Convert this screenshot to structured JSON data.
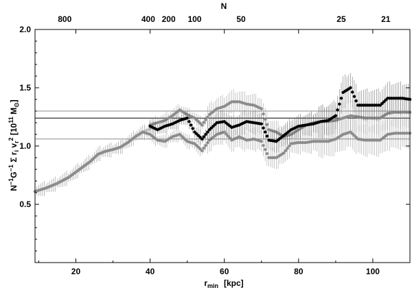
{
  "chart_data": {
    "type": "scatter",
    "x_axis": {
      "label_main": "r",
      "label_sub": "min",
      "label_unit": "[kpc]",
      "range": [
        9,
        110
      ],
      "ticks": [
        20,
        40,
        60,
        80,
        100
      ]
    },
    "y_axis": {
      "label_parts": [
        "N",
        "−1",
        "G",
        "−1",
        " Σ r",
        "i",
        " v",
        "r",
        "2",
        "  [10",
        "11",
        " M",
        "⊙",
        "]"
      ],
      "range": [
        0,
        2.0
      ],
      "ticks": [
        0.5,
        1.0,
        1.5,
        2.0
      ],
      "tick_labels": [
        "0.5",
        "1.0",
        "1.5",
        "2.0"
      ]
    },
    "top_axis": {
      "label": "N",
      "ticks": [
        {
          "r": 17,
          "label": "800"
        },
        {
          "r": 39.5,
          "label": "400"
        },
        {
          "r": 45,
          "label": "200"
        },
        {
          "r": 52,
          "label": "100"
        },
        {
          "r": 64.5,
          "label": "50"
        },
        {
          "r": 91.5,
          "label": "25"
        },
        {
          "r": 103.5,
          "label": "21"
        }
      ]
    },
    "reference_lines": [
      {
        "y": 1.3,
        "color": "#888888"
      },
      {
        "y": 1.24,
        "color": "#000000"
      },
      {
        "y": 1.06,
        "color": "#888888"
      }
    ],
    "series": [
      {
        "color": "#c8c8c8",
        "points": [
          [
            9,
            0.61
          ],
          [
            12,
            0.64
          ],
          [
            15,
            0.68
          ],
          [
            18,
            0.73
          ],
          [
            21,
            0.8
          ],
          [
            24,
            0.87
          ],
          [
            26,
            0.93
          ],
          [
            28,
            0.955
          ],
          [
            30,
            0.97
          ],
          [
            32,
            0.99
          ],
          [
            34,
            1.03
          ],
          [
            36,
            1.08
          ],
          [
            38,
            1.12
          ],
          [
            40,
            1.15
          ]
        ]
      },
      {
        "color": "#8c8c8c",
        "points": [
          [
            9,
            0.61
          ],
          [
            12,
            0.64
          ],
          [
            15,
            0.68
          ],
          [
            18,
            0.73
          ],
          [
            21,
            0.8
          ],
          [
            24,
            0.87
          ],
          [
            26,
            0.93
          ],
          [
            28,
            0.955
          ],
          [
            30,
            0.97
          ],
          [
            32,
            0.99
          ],
          [
            34,
            1.03
          ],
          [
            36,
            1.08
          ],
          [
            38,
            1.12
          ],
          [
            40,
            1.1
          ],
          [
            42,
            1.05
          ],
          [
            44,
            1.04
          ],
          [
            46,
            1.08
          ],
          [
            48,
            1.1
          ],
          [
            50,
            1.04
          ],
          [
            52,
            1.02
          ],
          [
            54,
            0.96
          ],
          [
            56,
            1.05
          ],
          [
            58,
            1.1
          ],
          [
            60,
            1.12
          ],
          [
            62,
            1.05
          ],
          [
            64,
            1.08
          ],
          [
            66,
            1.05
          ],
          [
            68,
            1.06
          ],
          [
            70,
            1.04
          ],
          [
            72,
            0.9
          ],
          [
            74,
            0.9
          ],
          [
            76,
            0.94
          ],
          [
            78,
            1.02
          ],
          [
            80,
            1.03
          ],
          [
            82,
            1.03
          ],
          [
            84,
            1.04
          ],
          [
            86,
            1.04
          ],
          [
            88,
            1.04
          ],
          [
            90,
            1.06
          ],
          [
            92,
            1.1
          ],
          [
            94,
            1.12
          ],
          [
            96,
            1.06
          ],
          [
            98,
            1.05
          ],
          [
            100,
            1.05
          ],
          [
            102,
            1.05
          ],
          [
            104,
            1.1
          ],
          [
            106,
            1.11
          ],
          [
            108,
            1.11
          ],
          [
            110,
            1.11
          ]
        ]
      },
      {
        "color": "#8c8c8c",
        "points": [
          [
            40,
            1.18
          ],
          [
            42,
            1.2
          ],
          [
            44,
            1.22
          ],
          [
            46,
            1.26
          ],
          [
            48,
            1.31
          ],
          [
            50,
            1.27
          ],
          [
            52,
            1.24
          ],
          [
            54,
            1.18
          ],
          [
            56,
            1.27
          ],
          [
            58,
            1.32
          ],
          [
            60,
            1.34
          ],
          [
            62,
            1.38
          ],
          [
            64,
            1.38
          ],
          [
            66,
            1.36
          ],
          [
            68,
            1.35
          ],
          [
            70,
            1.32
          ],
          [
            72,
            1.14
          ],
          [
            74,
            1.12
          ],
          [
            76,
            1.08
          ],
          [
            78,
            1.1
          ],
          [
            80,
            1.14
          ],
          [
            82,
            1.18
          ],
          [
            84,
            1.2
          ],
          [
            86,
            1.21
          ],
          [
            88,
            1.21
          ],
          [
            90,
            1.22
          ],
          [
            92,
            1.24
          ],
          [
            94,
            1.26
          ],
          [
            96,
            1.25
          ],
          [
            98,
            1.24
          ],
          [
            100,
            1.24
          ],
          [
            102,
            1.24
          ],
          [
            104,
            1.28
          ],
          [
            106,
            1.29
          ],
          [
            108,
            1.29
          ],
          [
            110,
            1.29
          ]
        ]
      },
      {
        "color": "#000000",
        "points": [
          [
            40,
            1.17
          ],
          [
            42,
            1.14
          ],
          [
            44,
            1.17
          ],
          [
            46,
            1.19
          ],
          [
            48,
            1.22
          ],
          [
            50,
            1.24
          ],
          [
            52,
            1.12
          ],
          [
            54,
            1.06
          ],
          [
            56,
            1.14
          ],
          [
            58,
            1.2
          ],
          [
            60,
            1.21
          ],
          [
            62,
            1.16
          ],
          [
            64,
            1.18
          ],
          [
            66,
            1.21
          ],
          [
            68,
            1.2
          ],
          [
            70,
            1.19
          ],
          [
            72,
            1.05
          ],
          [
            74,
            1.04
          ],
          [
            76,
            1.09
          ],
          [
            78,
            1.14
          ],
          [
            80,
            1.17
          ],
          [
            82,
            1.18
          ],
          [
            84,
            1.19
          ],
          [
            86,
            1.21
          ],
          [
            88,
            1.22
          ],
          [
            90,
            1.26
          ],
          [
            92,
            1.46
          ],
          [
            94,
            1.5
          ],
          [
            96,
            1.35
          ],
          [
            98,
            1.35
          ],
          [
            100,
            1.35
          ],
          [
            102,
            1.35
          ],
          [
            104,
            1.41
          ],
          [
            106,
            1.41
          ],
          [
            108,
            1.41
          ],
          [
            110,
            1.4
          ]
        ]
      }
    ]
  }
}
